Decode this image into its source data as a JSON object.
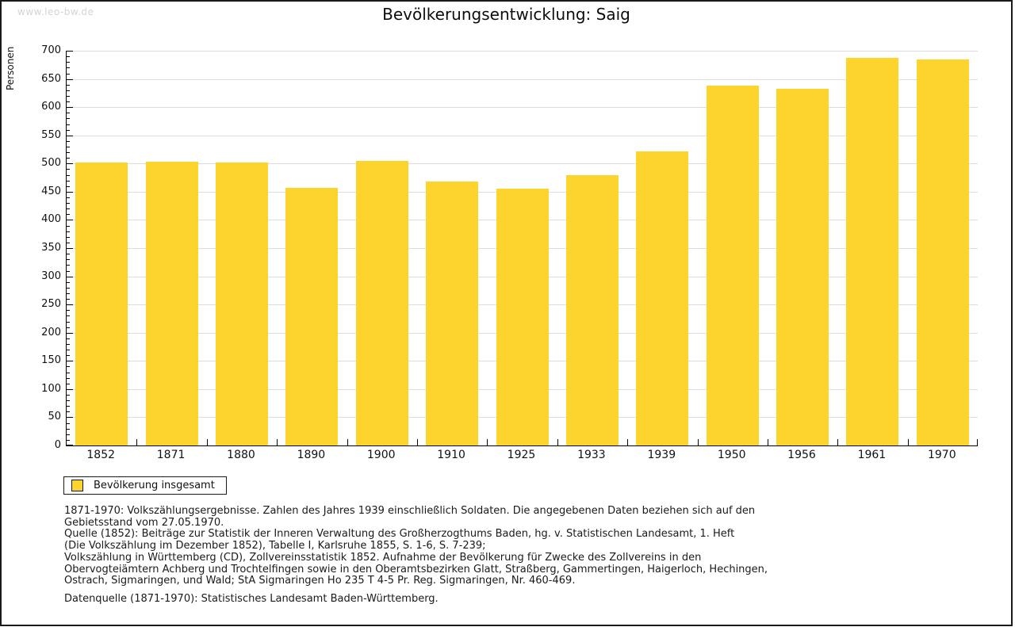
{
  "page": {
    "watermark": "www.leo-bw.de"
  },
  "chart_data": {
    "type": "bar",
    "title": "Bevölkerungsentwicklung: Saig",
    "xlabel": "",
    "ylabel": "Personen",
    "categories": [
      "1852",
      "1871",
      "1880",
      "1890",
      "1900",
      "1910",
      "1925",
      "1933",
      "1939",
      "1950",
      "1956",
      "1961",
      "1970"
    ],
    "series": [
      {
        "name": "Bevölkerung insgesamt",
        "values": [
          502,
          503,
          502,
          457,
          505,
          468,
          455,
          480,
          521,
          638,
          632,
          688,
          685
        ]
      }
    ],
    "ylim": [
      0,
      700
    ],
    "y_major_step": 50,
    "y_minor_step": 10,
    "grid": "horizontal-major",
    "legend_position": "bottom-left",
    "bar_color": "#FDD32E",
    "grid_color": "#DDDDDD",
    "axis_color": "#000000"
  },
  "legend": {
    "items": [
      {
        "label": "Bevölkerung insgesamt",
        "color": "#FDD32E"
      }
    ]
  },
  "footnotes": {
    "lines": [
      "1871-1970: Volkszählungsergebnisse. Zahlen des Jahres 1939 einschließlich Soldaten. Die angegebenen Daten beziehen sich auf den",
      "Gebietsstand vom 27.05.1970.",
      "Quelle (1852): Beiträge zur Statistik der Inneren Verwaltung des Großherzogthums Baden, hg. v. Statistischen Landesamt, 1. Heft",
      "(Die Volkszählung im Dezember 1852), Tabelle I, Karlsruhe 1855, S. 1-6, S. 7-239;",
      "Volkszählung in Württemberg (CD), Zollvereinsstatistik 1852. Aufnahme der Bevölkerung für Zwecke des Zollvereins in den",
      "Obervogteiämtern Achberg und Trochtelfingen sowie in den Oberamtsbezirken Glatt, Straßberg, Gammertingen, Haigerloch, Hechingen,",
      "Ostrach, Sigmaringen, und Wald; StA Sigmaringen Ho 235 T 4-5 Pr. Reg. Sigmaringen, Nr. 460-469."
    ],
    "datasource": "Datenquelle (1871-1970): Statistisches Landesamt Baden-Württemberg."
  }
}
